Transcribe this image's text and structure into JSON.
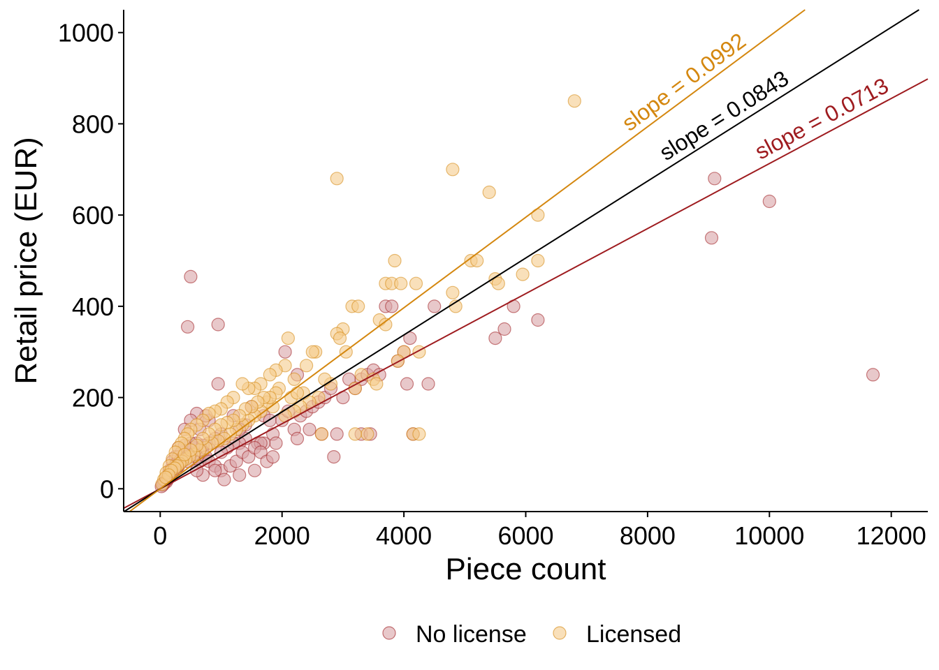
{
  "chart_data": {
    "type": "scatter",
    "xlabel": "Piece count",
    "ylabel": "Retail price (EUR)",
    "xlim": [
      -600,
      12600
    ],
    "ylim": [
      -50,
      1050
    ],
    "xticks": [
      0,
      2000,
      4000,
      6000,
      8000,
      10000,
      12000
    ],
    "yticks": [
      0,
      200,
      400,
      600,
      800,
      1000
    ],
    "grid": false,
    "legend_position": "bottom",
    "series": [
      {
        "name": "No license",
        "color": "#9e1b1f",
        "fill": "#d9a3a6",
        "slope": 0.0713,
        "slope_label": "slope = 0.0713",
        "points": [
          [
            500,
            465
          ],
          [
            450,
            355
          ],
          [
            950,
            360
          ],
          [
            950,
            230
          ],
          [
            9100,
            680
          ],
          [
            9050,
            550
          ],
          [
            10000,
            630
          ],
          [
            11700,
            250
          ],
          [
            5800,
            400
          ],
          [
            6200,
            370
          ],
          [
            5650,
            350
          ],
          [
            5500,
            330
          ],
          [
            4500,
            400
          ],
          [
            4100,
            330
          ],
          [
            4000,
            300
          ],
          [
            4050,
            230
          ],
          [
            4400,
            230
          ],
          [
            3700,
            400
          ],
          [
            3800,
            400
          ],
          [
            3900,
            280
          ],
          [
            3300,
            120
          ],
          [
            3450,
            120
          ],
          [
            2900,
            120
          ],
          [
            2850,
            70
          ],
          [
            4150,
            120
          ],
          [
            2050,
            300
          ],
          [
            2250,
            250
          ],
          [
            1500,
            180
          ],
          [
            1700,
            160
          ],
          [
            1800,
            150
          ],
          [
            1600,
            100
          ],
          [
            1850,
            120
          ],
          [
            1900,
            100
          ],
          [
            1700,
            100
          ],
          [
            1650,
            100
          ],
          [
            1400,
            110
          ],
          [
            1300,
            100
          ],
          [
            1200,
            100
          ],
          [
            1100,
            90
          ],
          [
            1000,
            80
          ],
          [
            800,
            150
          ],
          [
            650,
            130
          ],
          [
            750,
            160
          ],
          [
            600,
            165
          ],
          [
            500,
            150
          ],
          [
            400,
            130
          ],
          [
            300,
            90
          ],
          [
            350,
            80
          ],
          [
            250,
            70
          ],
          [
            200,
            60
          ],
          [
            150,
            40
          ],
          [
            100,
            20
          ],
          [
            50,
            10
          ],
          [
            120,
            25
          ],
          [
            80,
            15
          ],
          [
            180,
            35
          ],
          [
            220,
            45
          ],
          [
            260,
            55
          ],
          [
            300,
            50
          ],
          [
            350,
            60
          ],
          [
            400,
            70
          ],
          [
            450,
            60
          ],
          [
            500,
            80
          ],
          [
            550,
            90
          ],
          [
            600,
            70
          ],
          [
            650,
            60
          ],
          [
            700,
            80
          ],
          [
            750,
            70
          ],
          [
            800,
            60
          ],
          [
            900,
            50
          ],
          [
            1000,
            40
          ],
          [
            1050,
            20
          ],
          [
            1150,
            50
          ],
          [
            1250,
            60
          ],
          [
            1350,
            80
          ],
          [
            1450,
            70
          ],
          [
            1550,
            90
          ],
          [
            1650,
            80
          ],
          [
            1750,
            60
          ],
          [
            1850,
            70
          ],
          [
            2000,
            150
          ],
          [
            2100,
            170
          ],
          [
            2200,
            130
          ],
          [
            2300,
            160
          ],
          [
            2400,
            170
          ],
          [
            2500,
            180
          ],
          [
            2600,
            190
          ],
          [
            2700,
            200
          ],
          [
            2800,
            220
          ],
          [
            3000,
            200
          ],
          [
            3100,
            240
          ],
          [
            3200,
            220
          ],
          [
            3300,
            240
          ],
          [
            3400,
            250
          ],
          [
            3500,
            260
          ],
          [
            3600,
            250
          ],
          [
            2250,
            110
          ],
          [
            2450,
            130
          ],
          [
            2650,
            120
          ],
          [
            1550,
            40
          ],
          [
            1300,
            30
          ],
          [
            900,
            40
          ],
          [
            700,
            30
          ],
          [
            600,
            40
          ],
          [
            1200,
            160
          ],
          [
            1400,
            140
          ],
          [
            1300,
            130
          ],
          [
            1000,
            120
          ],
          [
            900,
            110
          ],
          [
            800,
            100
          ],
          [
            700,
            95
          ],
          [
            600,
            100
          ],
          [
            500,
            100
          ],
          [
            400,
            95
          ],
          [
            300,
            70
          ],
          [
            250,
            50
          ],
          [
            200,
            40
          ],
          [
            150,
            30
          ],
          [
            100,
            15
          ],
          [
            60,
            12
          ],
          [
            40,
            8
          ],
          [
            20,
            5
          ],
          [
            130,
            22
          ],
          [
            170,
            28
          ],
          [
            210,
            38
          ],
          [
            280,
            48
          ],
          [
            330,
            62
          ],
          [
            380,
            72
          ]
        ]
      },
      {
        "name": "Licensed",
        "color": "#d4870f",
        "fill": "#f5cc8c",
        "slope": 0.0992,
        "slope_label": "slope = 0.0992",
        "points": [
          [
            6800,
            850
          ],
          [
            4800,
            700
          ],
          [
            2900,
            680
          ],
          [
            5400,
            650
          ],
          [
            6200,
            600
          ],
          [
            5100,
            500
          ],
          [
            5200,
            500
          ],
          [
            3850,
            500
          ],
          [
            6200,
            500
          ],
          [
            5950,
            470
          ],
          [
            5500,
            460
          ],
          [
            5550,
            450
          ],
          [
            3700,
            450
          ],
          [
            3800,
            450
          ],
          [
            3950,
            450
          ],
          [
            4200,
            450
          ],
          [
            4800,
            430
          ],
          [
            4850,
            400
          ],
          [
            3600,
            370
          ],
          [
            3700,
            360
          ],
          [
            3150,
            400
          ],
          [
            3250,
            400
          ],
          [
            3000,
            350
          ],
          [
            2900,
            340
          ],
          [
            2950,
            330
          ],
          [
            3050,
            300
          ],
          [
            2550,
            300
          ],
          [
            2500,
            300
          ],
          [
            2100,
            330
          ],
          [
            2050,
            270
          ],
          [
            1900,
            260
          ],
          [
            1800,
            250
          ],
          [
            1650,
            230
          ],
          [
            1550,
            220
          ],
          [
            1450,
            220
          ],
          [
            1350,
            230
          ],
          [
            1200,
            200
          ],
          [
            1100,
            190
          ],
          [
            1000,
            175
          ],
          [
            900,
            170
          ],
          [
            800,
            165
          ],
          [
            700,
            150
          ],
          [
            600,
            140
          ],
          [
            500,
            130
          ],
          [
            450,
            120
          ],
          [
            400,
            110
          ],
          [
            350,
            100
          ],
          [
            300,
            90
          ],
          [
            250,
            80
          ],
          [
            200,
            65
          ],
          [
            150,
            50
          ],
          [
            100,
            35
          ],
          [
            60,
            20
          ],
          [
            30,
            10
          ],
          [
            4150,
            120
          ],
          [
            4250,
            120
          ],
          [
            3400,
            120
          ],
          [
            3200,
            120
          ],
          [
            2650,
            120
          ],
          [
            3500,
            240
          ],
          [
            3550,
            230
          ],
          [
            3300,
            250
          ],
          [
            3200,
            220
          ],
          [
            2800,
            230
          ],
          [
            2700,
            240
          ],
          [
            2600,
            200
          ],
          [
            2450,
            190
          ],
          [
            2350,
            210
          ],
          [
            2300,
            180
          ],
          [
            2200,
            170
          ],
          [
            2150,
            200
          ],
          [
            2050,
            160
          ],
          [
            1950,
            220
          ],
          [
            1850,
            180
          ],
          [
            1750,
            190
          ],
          [
            1650,
            170
          ],
          [
            1550,
            160
          ],
          [
            1450,
            150
          ],
          [
            1350,
            140
          ],
          [
            1250,
            130
          ],
          [
            1150,
            120
          ],
          [
            1050,
            110
          ],
          [
            950,
            105
          ],
          [
            850,
            100
          ],
          [
            750,
            90
          ],
          [
            650,
            85
          ],
          [
            550,
            75
          ],
          [
            480,
            70
          ],
          [
            420,
            65
          ],
          [
            360,
            60
          ],
          [
            320,
            55
          ],
          [
            280,
            50
          ],
          [
            240,
            45
          ],
          [
            180,
            40
          ],
          [
            140,
            30
          ],
          [
            90,
            25
          ],
          [
            4000,
            300
          ],
          [
            4250,
            300
          ],
          [
            3900,
            280
          ],
          [
            2400,
            270
          ],
          [
            2200,
            240
          ],
          [
            2250,
            210
          ],
          [
            1900,
            210
          ],
          [
            1800,
            200
          ],
          [
            1700,
            200
          ],
          [
            1600,
            190
          ],
          [
            1500,
            180
          ],
          [
            1400,
            175
          ],
          [
            1300,
            160
          ],
          [
            1200,
            150
          ],
          [
            1100,
            145
          ],
          [
            1000,
            140
          ],
          [
            900,
            130
          ],
          [
            800,
            120
          ],
          [
            700,
            110
          ],
          [
            600,
            95
          ],
          [
            500,
            85
          ],
          [
            400,
            75
          ]
        ]
      }
    ],
    "overall_fit": {
      "color": "#000000",
      "slope": 0.0843,
      "slope_label": "slope = 0.0843"
    }
  }
}
